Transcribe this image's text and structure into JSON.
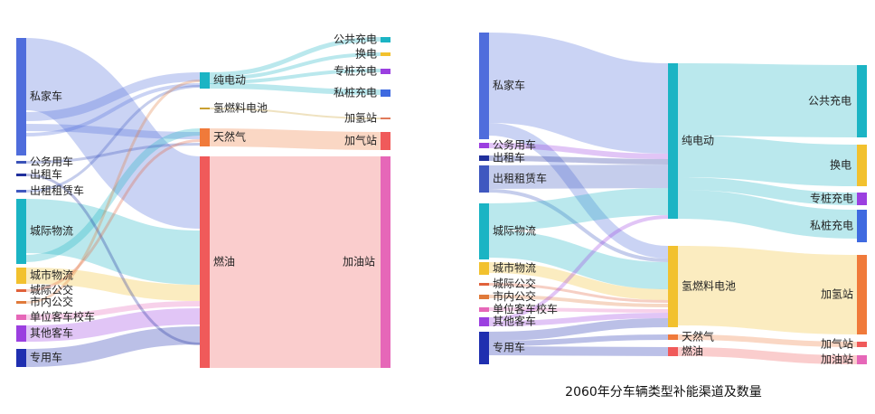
{
  "caption": "2060年分车辆类型补能渠道及数量",
  "chart_data": [
    {
      "type": "sankey",
      "nodes": [
        {
          "id": "sj",
          "label": "私家车",
          "color": "#4f6ddc"
        },
        {
          "id": "gw",
          "label": "公务用车",
          "color": "#3a52b8"
        },
        {
          "id": "cz",
          "label": "出租车",
          "color": "#1f2f9c"
        },
        {
          "id": "czz",
          "label": "出租租赁车",
          "color": "#3f58c0"
        },
        {
          "id": "cj",
          "label": "城际物流",
          "color": "#1bb4c4"
        },
        {
          "id": "cs",
          "label": "城市物流",
          "color": "#f2c12e"
        },
        {
          "id": "cjgj",
          "label": "城际公交",
          "color": "#e0613a"
        },
        {
          "id": "csgj",
          "label": "市内公交",
          "color": "#e07a3a"
        },
        {
          "id": "dw",
          "label": "单位客车校车",
          "color": "#e667b8"
        },
        {
          "id": "qt",
          "label": "其他客车",
          "color": "#9b3fe0"
        },
        {
          "id": "zy",
          "label": "专用车",
          "color": "#1f2fb0"
        },
        {
          "id": "cdd",
          "label": "纯电动",
          "color": "#1bb4c4"
        },
        {
          "id": "qr",
          "label": "氢燃料电池",
          "color": "#c9a030"
        },
        {
          "id": "trq",
          "label": "天然气",
          "color": "#f07a3a"
        },
        {
          "id": "ry",
          "label": "燃油",
          "color": "#f05a5a"
        },
        {
          "id": "ggcd",
          "label": "公共充电",
          "color": "#1bb4c4"
        },
        {
          "id": "hd",
          "label": "换电",
          "color": "#f2c12e"
        },
        {
          "id": "zzcd",
          "label": "专桩充电",
          "color": "#9b3fe0"
        },
        {
          "id": "szcd",
          "label": "私桩充电",
          "color": "#3f6ae0"
        },
        {
          "id": "jqz",
          "label": "加氢站",
          "color": "#e07a5a"
        },
        {
          "id": "jqzg",
          "label": "加气站",
          "color": "#f05a5a"
        },
        {
          "id": "jyz",
          "label": "加油站",
          "color": "#e667b8"
        }
      ]
    },
    {
      "type": "sankey",
      "nodes": [
        {
          "id": "sj",
          "label": "私家车",
          "color": "#4f6ddc"
        },
        {
          "id": "gw",
          "label": "公务用车",
          "color": "#9b3fe0"
        },
        {
          "id": "cz",
          "label": "出租车",
          "color": "#1f2f9c"
        },
        {
          "id": "czz",
          "label": "出租租赁车",
          "color": "#3f58c0"
        },
        {
          "id": "cj",
          "label": "城际物流",
          "color": "#1bb4c4"
        },
        {
          "id": "cs",
          "label": "城市物流",
          "color": "#f2c12e"
        },
        {
          "id": "cjgj",
          "label": "城际公交",
          "color": "#e0613a"
        },
        {
          "id": "csgj",
          "label": "市内公交",
          "color": "#e07a3a"
        },
        {
          "id": "dw",
          "label": "单位客车校车",
          "color": "#e667b8"
        },
        {
          "id": "qt",
          "label": "其他客车",
          "color": "#9b3fe0"
        },
        {
          "id": "zy",
          "label": "专用车",
          "color": "#1f2fb0"
        },
        {
          "id": "cdd",
          "label": "纯电动",
          "color": "#1bb4c4"
        },
        {
          "id": "qr",
          "label": "氢燃料电池",
          "color": "#f2c12e"
        },
        {
          "id": "trq",
          "label": "天然气",
          "color": "#f07a3a"
        },
        {
          "id": "ry",
          "label": "燃油",
          "color": "#f05a5a"
        },
        {
          "id": "ggcd",
          "label": "公共充电",
          "color": "#1bb4c4"
        },
        {
          "id": "hd",
          "label": "换电",
          "color": "#f2c12e"
        },
        {
          "id": "zzcd",
          "label": "专桩充电",
          "color": "#9b3fe0"
        },
        {
          "id": "szcd",
          "label": "私桩充电",
          "color": "#3f6ae0"
        },
        {
          "id": "jqz",
          "label": "加氢站",
          "color": "#f07a3a"
        },
        {
          "id": "jqzg",
          "label": "加气站",
          "color": "#f05a5a"
        },
        {
          "id": "jyz",
          "label": "加油站",
          "color": "#e667b8"
        }
      ]
    }
  ]
}
